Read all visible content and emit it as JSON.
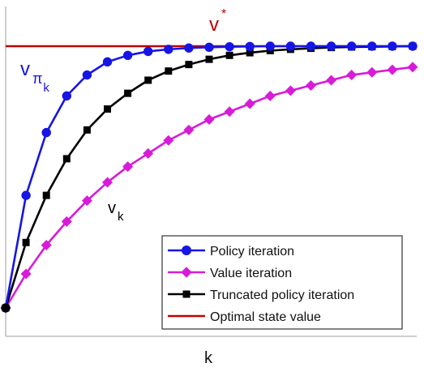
{
  "chart_data": {
    "type": "line",
    "title": "",
    "xlabel": "k",
    "ylabel": "",
    "ylim": [
      0,
      1.0
    ],
    "grid": false,
    "legend_position": "bottom-right",
    "colors": {
      "policy": "#1515e6",
      "value": "#d81bd8",
      "truncated": "#000000",
      "optimal": "#c00000"
    },
    "series": [
      {
        "name": "Policy iteration",
        "color": "#1515e6",
        "marker": "circle",
        "values": [
          0.0,
          0.43,
          0.67,
          0.81,
          0.89,
          0.94,
          0.965,
          0.98,
          0.988,
          0.993,
          0.996,
          0.998,
          0.999,
          1.0,
          1.0,
          1.0,
          1.0,
          1.0,
          1.0,
          1.0,
          1.0
        ]
      },
      {
        "name": "Value iteration",
        "color": "#d81bd8",
        "marker": "diamond",
        "values": [
          0.0,
          0.13,
          0.24,
          0.33,
          0.41,
          0.48,
          0.54,
          0.59,
          0.64,
          0.68,
          0.72,
          0.75,
          0.78,
          0.81,
          0.83,
          0.85,
          0.87,
          0.89,
          0.9,
          0.91,
          0.92
        ]
      },
      {
        "name": "Truncated policy iteration",
        "color": "#000000",
        "marker": "square",
        "values": [
          0.0,
          0.25,
          0.43,
          0.57,
          0.68,
          0.76,
          0.82,
          0.87,
          0.905,
          0.93,
          0.95,
          0.965,
          0.975,
          0.983,
          0.988,
          0.992,
          0.995,
          0.997,
          0.998,
          0.999,
          1.0
        ]
      },
      {
        "name": "Optimal state value",
        "color": "#c00000",
        "marker": "none",
        "values": [
          1.0,
          1.0
        ]
      }
    ],
    "annotations": [
      {
        "id": "vstar",
        "base": "v",
        "sup": "*",
        "color": "#c00000"
      },
      {
        "id": "vpik",
        "base": "v",
        "sub": "π",
        "subsub": "k",
        "color": "#1515e6"
      },
      {
        "id": "vk",
        "base": "v",
        "sub": "k",
        "color": "#000000"
      }
    ]
  }
}
